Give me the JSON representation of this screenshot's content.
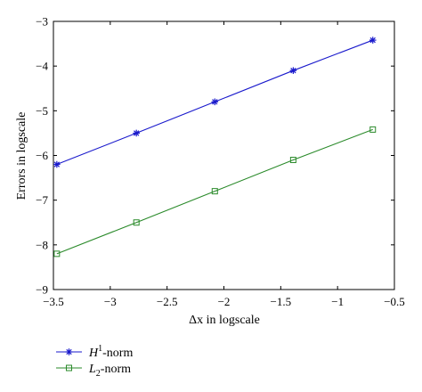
{
  "chart_data": {
    "type": "line",
    "title": "",
    "xlabel": "Δx in logscale",
    "ylabel": "Errors in logscale",
    "xlim": [
      -3.5,
      -0.5
    ],
    "ylim": [
      -9,
      -3
    ],
    "xticks": [
      -3.5,
      -3,
      -2.5,
      -2,
      -1.5,
      -1,
      -0.5
    ],
    "xtick_labels": [
      "−3.5",
      "−3",
      "−2.5",
      "−2",
      "−1.5",
      "−1",
      "−0.5"
    ],
    "yticks": [
      -9,
      -8,
      -7,
      -6,
      -5,
      -4,
      -3
    ],
    "ytick_labels": [
      "−9",
      "−8",
      "−7",
      "−6",
      "−5",
      "−4",
      "−3"
    ],
    "grid": false,
    "legend_position": "below-left",
    "x": [
      -3.47,
      -2.77,
      -2.08,
      -1.39,
      -0.69
    ],
    "series": [
      {
        "name": "H¹-norm",
        "legend_main": "H",
        "legend_sup": "1",
        "legend_rest": "-norm",
        "values": [
          -6.2,
          -5.5,
          -4.8,
          -4.1,
          -3.42
        ],
        "color": "#1a1acc",
        "marker": "asterisk"
      },
      {
        "name": "L₂-norm",
        "legend_main": "L",
        "legend_sub": "2",
        "legend_rest": "-norm",
        "values": [
          -8.2,
          -7.5,
          -6.8,
          -6.1,
          -5.42
        ],
        "color": "#2a8a2a",
        "marker": "square"
      }
    ]
  }
}
